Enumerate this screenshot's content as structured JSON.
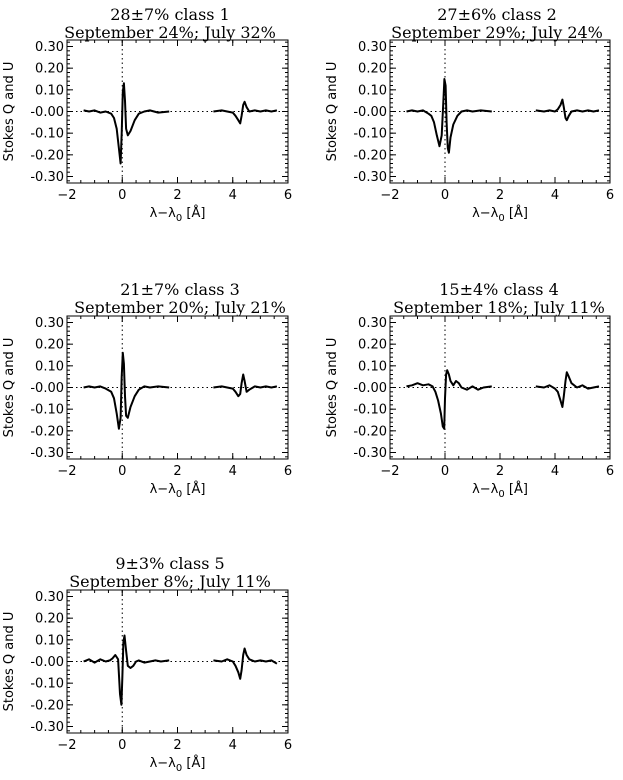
{
  "chart_data": [
    {
      "type": "line",
      "title_line1": "28±7% class 1",
      "title_line2": "September 24%; July 32%",
      "xlabel": "λ−λ",
      "xlabel_sub": "0",
      "xlabel_unit": " [Å]",
      "ylabel": "Stokes Q and U",
      "xlim": [
        -2,
        6
      ],
      "ylim": [
        -0.33,
        0.33
      ],
      "xticks": [
        "−2",
        "0",
        "2",
        "4",
        "6"
      ],
      "yticks": [
        "0.30",
        "0.20",
        "0.10",
        "-0.00",
        "-0.10",
        "-0.20",
        "-0.30"
      ],
      "series": [
        {
          "x": [
            -1.4,
            -1.2,
            -1.0,
            -0.8,
            -0.6,
            -0.4,
            -0.3,
            -0.2,
            -0.12,
            -0.06,
            -0.02,
            0.02,
            0.06,
            0.1,
            0.14,
            0.2,
            0.3,
            0.45,
            0.6,
            0.8,
            1.0,
            1.3,
            1.7
          ],
          "y": [
            0.005,
            0.0,
            0.005,
            -0.005,
            0.0,
            -0.01,
            -0.03,
            -0.08,
            -0.17,
            -0.24,
            -0.1,
            0.09,
            0.13,
            0.05,
            -0.08,
            -0.11,
            -0.09,
            -0.04,
            -0.01,
            0.0,
            0.005,
            -0.005,
            0.0
          ]
        },
        {
          "x": [
            3.3,
            3.6,
            3.8,
            4.0,
            4.1,
            4.2,
            4.27,
            4.32,
            4.38,
            4.43,
            4.5,
            4.6,
            4.8,
            5.0,
            5.2,
            5.4,
            5.6
          ],
          "y": [
            0.0,
            0.005,
            0.0,
            -0.005,
            -0.02,
            -0.04,
            -0.055,
            -0.02,
            0.03,
            0.045,
            0.02,
            0.0,
            0.005,
            0.0,
            0.005,
            0.0,
            0.005
          ]
        }
      ]
    },
    {
      "type": "line",
      "title_line1": "27±6% class 2",
      "title_line2": "September 29%; July 24%",
      "xlabel": "λ−λ",
      "xlabel_sub": "0",
      "xlabel_unit": " [Å]",
      "ylabel": "Stokes Q and U",
      "xlim": [
        -2,
        6
      ],
      "ylim": [
        -0.33,
        0.33
      ],
      "xticks": [
        "−2",
        "0",
        "2",
        "4",
        "6"
      ],
      "yticks": [
        "0.30",
        "0.20",
        "0.10",
        "-0.00",
        "-0.10",
        "-0.20",
        "-0.30"
      ],
      "series": [
        {
          "x": [
            -1.4,
            -1.2,
            -1.0,
            -0.8,
            -0.6,
            -0.5,
            -0.4,
            -0.3,
            -0.2,
            -0.12,
            -0.06,
            -0.02,
            0.02,
            0.06,
            0.1,
            0.14,
            0.2,
            0.3,
            0.45,
            0.6,
            0.8,
            1.0,
            1.3,
            1.7
          ],
          "y": [
            0.0,
            0.005,
            0.0,
            0.005,
            -0.01,
            -0.02,
            -0.05,
            -0.11,
            -0.16,
            -0.11,
            0.05,
            0.15,
            0.12,
            -0.05,
            -0.17,
            -0.19,
            -0.12,
            -0.06,
            -0.02,
            0.0,
            0.005,
            0.0,
            0.005,
            0.0
          ]
        },
        {
          "x": [
            3.3,
            3.6,
            3.8,
            4.0,
            4.1,
            4.2,
            4.27,
            4.32,
            4.38,
            4.43,
            4.5,
            4.6,
            4.8,
            5.0,
            5.2,
            5.4,
            5.6
          ],
          "y": [
            0.005,
            0.0,
            0.005,
            0.0,
            0.01,
            0.03,
            0.055,
            0.02,
            -0.03,
            -0.04,
            -0.02,
            0.0,
            0.005,
            0.0,
            0.005,
            0.0,
            0.005
          ]
        }
      ]
    },
    {
      "type": "line",
      "title_line1": "21±7% class 3",
      "title_line2": "September 20%; July 21%",
      "xlabel": "λ−λ",
      "xlabel_sub": "0",
      "xlabel_unit": " [Å]",
      "ylabel": "Stokes Q and U",
      "xlim": [
        -2,
        6
      ],
      "ylim": [
        -0.33,
        0.33
      ],
      "xticks": [
        "−2",
        "0",
        "2",
        "4",
        "6"
      ],
      "yticks": [
        "0.30",
        "0.20",
        "0.10",
        "-0.00",
        "-0.10",
        "-0.20",
        "-0.30"
      ],
      "series": [
        {
          "x": [
            -1.4,
            -1.2,
            -1.0,
            -0.8,
            -0.6,
            -0.4,
            -0.3,
            -0.2,
            -0.12,
            -0.06,
            -0.02,
            0.02,
            0.06,
            0.1,
            0.14,
            0.2,
            0.3,
            0.45,
            0.6,
            0.8,
            1.0,
            1.3,
            1.7
          ],
          "y": [
            0.0,
            0.005,
            0.0,
            0.005,
            -0.005,
            -0.02,
            -0.05,
            -0.12,
            -0.19,
            -0.14,
            0.05,
            0.16,
            0.11,
            -0.04,
            -0.13,
            -0.14,
            -0.09,
            -0.04,
            -0.01,
            0.005,
            0.0,
            0.005,
            0.0
          ]
        },
        {
          "x": [
            3.3,
            3.6,
            3.8,
            4.0,
            4.1,
            4.2,
            4.27,
            4.32,
            4.38,
            4.43,
            4.5,
            4.6,
            4.8,
            5.0,
            5.2,
            5.4,
            5.6
          ],
          "y": [
            0.0,
            0.005,
            0.0,
            -0.005,
            -0.02,
            -0.04,
            -0.03,
            0.02,
            0.06,
            0.03,
            -0.02,
            -0.01,
            0.005,
            0.0,
            0.005,
            0.0,
            0.005
          ]
        }
      ]
    },
    {
      "type": "line",
      "title_line1": "15±4% class 4",
      "title_line2": "September 18%; July 11%",
      "xlabel": "λ−λ",
      "xlabel_sub": "0",
      "xlabel_unit": " [Å]",
      "ylabel": "Stokes Q and U",
      "xlim": [
        -2,
        6
      ],
      "ylim": [
        -0.33,
        0.33
      ],
      "xticks": [
        "−2",
        "0",
        "2",
        "4",
        "6"
      ],
      "yticks": [
        "0.30",
        "0.20",
        "0.10",
        "-0.00",
        "-0.10",
        "-0.20",
        "-0.30"
      ],
      "series": [
        {
          "x": [
            -1.4,
            -1.2,
            -1.0,
            -0.8,
            -0.6,
            -0.45,
            -0.35,
            -0.25,
            -0.15,
            -0.08,
            -0.03,
            0.0,
            0.04,
            0.08,
            0.14,
            0.2,
            0.3,
            0.4,
            0.5,
            0.6,
            0.8,
            1.0,
            1.2,
            1.4,
            1.7
          ],
          "y": [
            0.005,
            0.01,
            0.02,
            0.01,
            0.015,
            0.005,
            -0.02,
            -0.06,
            -0.12,
            -0.18,
            -0.19,
            -0.05,
            0.06,
            0.08,
            0.06,
            0.03,
            0.01,
            0.03,
            0.02,
            0.0,
            -0.01,
            0.005,
            -0.01,
            0.0,
            0.005
          ]
        },
        {
          "x": [
            3.3,
            3.6,
            3.8,
            4.0,
            4.1,
            4.2,
            4.27,
            4.32,
            4.38,
            4.43,
            4.5,
            4.6,
            4.8,
            5.0,
            5.2,
            5.4,
            5.6
          ],
          "y": [
            0.005,
            0.0,
            0.01,
            -0.005,
            -0.02,
            -0.06,
            -0.09,
            -0.04,
            0.03,
            0.07,
            0.05,
            0.02,
            0.0,
            0.01,
            -0.005,
            0.0,
            0.005
          ]
        }
      ]
    },
    {
      "type": "line",
      "title_line1": "9±3% class 5",
      "title_line2": "September 8%; July 11%",
      "xlabel": "λ−λ",
      "xlabel_sub": "0",
      "xlabel_unit": " [Å]",
      "ylabel": "Stokes Q and U",
      "xlim": [
        -2,
        6
      ],
      "ylim": [
        -0.33,
        0.33
      ],
      "xticks": [
        "−2",
        "0",
        "2",
        "4",
        "6"
      ],
      "yticks": [
        "0.30",
        "0.20",
        "0.10",
        "-0.00",
        "-0.10",
        "-0.20",
        "-0.30"
      ],
      "series": [
        {
          "x": [
            -1.4,
            -1.2,
            -1.0,
            -0.8,
            -0.6,
            -0.45,
            -0.35,
            -0.25,
            -0.15,
            -0.08,
            -0.03,
            0.0,
            0.04,
            0.08,
            0.14,
            0.2,
            0.3,
            0.4,
            0.5,
            0.6,
            0.8,
            1.0,
            1.2,
            1.4,
            1.7
          ],
          "y": [
            0.0,
            0.01,
            -0.005,
            0.01,
            0.0,
            0.005,
            0.015,
            0.03,
            0.01,
            -0.15,
            -0.2,
            -0.08,
            0.09,
            0.12,
            0.05,
            -0.02,
            -0.03,
            -0.02,
            0.0,
            0.005,
            -0.005,
            0.0,
            0.005,
            0.0,
            0.005
          ]
        },
        {
          "x": [
            3.3,
            3.6,
            3.8,
            4.0,
            4.1,
            4.2,
            4.27,
            4.32,
            4.38,
            4.43,
            4.5,
            4.6,
            4.8,
            5.0,
            5.2,
            5.4,
            5.6
          ],
          "y": [
            0.005,
            0.0,
            0.01,
            0.0,
            -0.02,
            -0.05,
            -0.08,
            -0.04,
            0.03,
            0.06,
            0.03,
            0.01,
            0.0,
            0.005,
            0.0,
            0.005,
            -0.01
          ]
        }
      ]
    }
  ]
}
